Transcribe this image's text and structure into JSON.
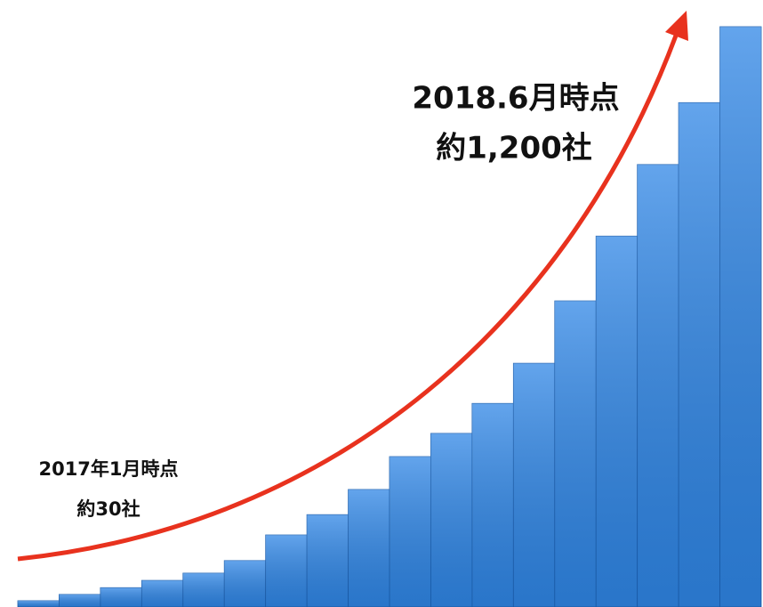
{
  "chart_data": {
    "type": "bar",
    "values": [
      13,
      26,
      40,
      55,
      70,
      96,
      149,
      191,
      243,
      311,
      359,
      421,
      504,
      633,
      767,
      915,
      1043,
      1200
    ],
    "color": "#2f86e6",
    "ylim": [
      0,
      1200
    ],
    "annotations": [
      [
        "2017年1月時点",
        "約30社"
      ],
      [
        "2018.6月時点",
        "約1,200社"
      ]
    ]
  }
}
